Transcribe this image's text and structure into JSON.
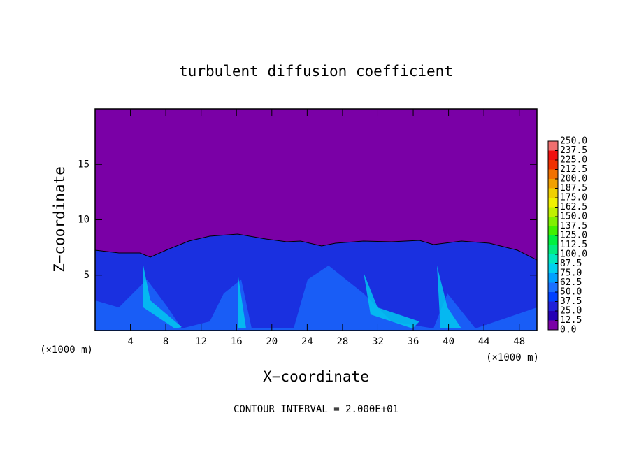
{
  "chart_data": {
    "type": "contour",
    "title": "turbulent diffusion coefficient",
    "x_label": "X−coordinate",
    "y_label": "Z−coordinate",
    "x_unit": "(×1000 m)",
    "y_unit": "(×1000 m)",
    "footer": "CONTOUR INTERVAL = 2.000E+01",
    "xlim": [
      0,
      50
    ],
    "xticks": [
      4,
      8,
      12,
      16,
      20,
      24,
      28,
      32,
      36,
      40,
      44,
      48
    ],
    "ylim": [
      0,
      20
    ],
    "yticks": [
      5,
      10,
      15
    ],
    "colorbar": {
      "ticks": [
        {
          "value": 0,
          "label": "0.0"
        },
        {
          "value": 12.5,
          "label": "12.5"
        },
        {
          "value": 25,
          "label": "25.0"
        },
        {
          "value": 37.5,
          "label": "37.5"
        },
        {
          "value": 50,
          "label": "50.0"
        },
        {
          "value": 62.5,
          "label": "62.5"
        },
        {
          "value": 75,
          "label": "75.0"
        },
        {
          "value": 87.5,
          "label": "87.5"
        },
        {
          "value": 100,
          "label": "100.0"
        },
        {
          "value": 112.5,
          "label": "112.5"
        },
        {
          "value": 125,
          "label": "125.0"
        },
        {
          "value": 137.5,
          "label": "137.5"
        },
        {
          "value": 150,
          "label": "150.0"
        },
        {
          "value": 162.5,
          "label": "162.5"
        },
        {
          "value": 175,
          "label": "175.0"
        },
        {
          "value": 187.5,
          "label": "187.5"
        },
        {
          "value": 200,
          "label": "200.0"
        },
        {
          "value": 212.5,
          "label": "212.5"
        },
        {
          "value": 225,
          "label": "225.0"
        },
        {
          "value": 237.5,
          "label": "237.5"
        },
        {
          "value": 250,
          "label": "250.0"
        }
      ],
      "colors": [
        "#7a00a6",
        "#2400b4",
        "#2020d8",
        "#0040ff",
        "#1a70ff",
        "#00a0ff",
        "#00d0f0",
        "#00e8c0",
        "#00ec80",
        "#00f040",
        "#40f000",
        "#80f000",
        "#c0f000",
        "#f0f000",
        "#f0d000",
        "#f0a000",
        "#f07000",
        "#f03000",
        "#f01010",
        "#f07070"
      ]
    }
  }
}
